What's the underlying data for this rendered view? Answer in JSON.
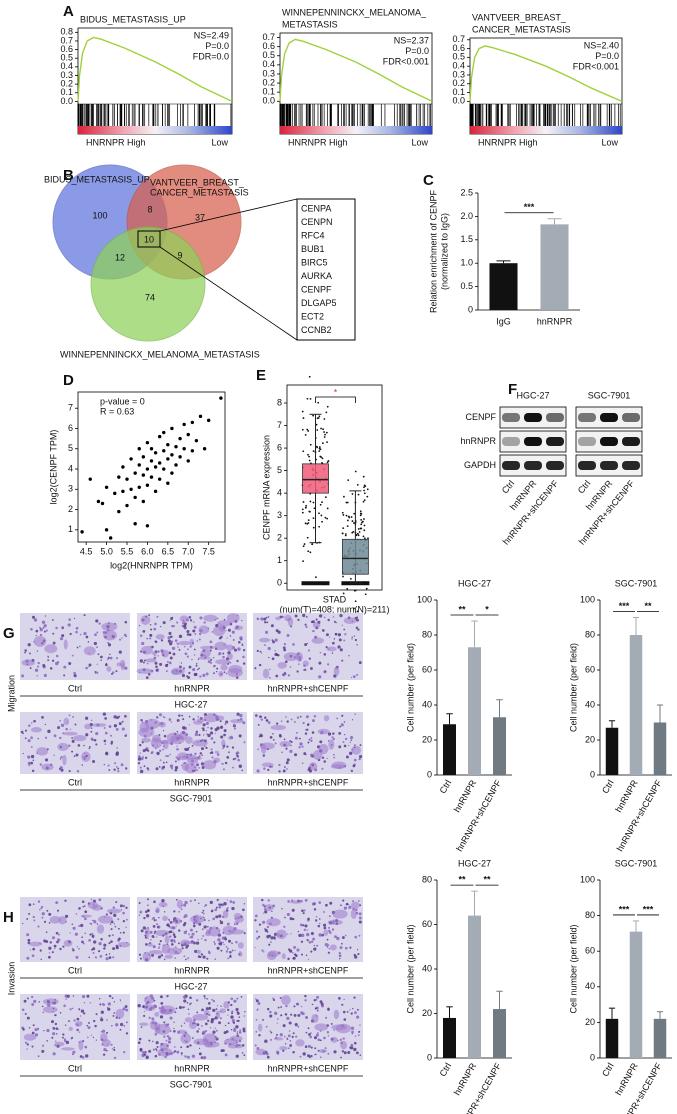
{
  "panel_labels": [
    "A",
    "B",
    "C",
    "D",
    "E",
    "F",
    "G",
    "H"
  ],
  "venn": {
    "sets": [
      [
        "BIDUS_METASTASIS_UP"
      ],
      [
        "VANTVEER_BREAST_",
        "CANCER_METASTASIS"
      ],
      [
        "WINNEPENNINCKX_MELANOMA_METASTASIS"
      ]
    ],
    "counts": [
      "100",
      "8",
      "37",
      "10",
      "12",
      "9",
      "74"
    ]
  },
  "genes": [
    "CENPA",
    "CENPN",
    "RFC4",
    "BUB1",
    "BIRC5",
    "AURKA",
    "CENPF",
    "DLGAP5",
    "ECT2",
    "CCNB2"
  ],
  "blot": {
    "cell_lines": [
      "HGC-27",
      "SGC-7901"
    ],
    "rows": [
      "CENPF",
      "hnRNPR",
      "GAPDH"
    ],
    "lanes": [
      "Ctrl",
      "hnRNPR",
      "hnRNPR+shCENPF"
    ]
  },
  "micrographs": [
    {
      "label": "Migration",
      "columns": [
        "Ctrl",
        "hnRNPR",
        "hnRNPR+shCENPF"
      ],
      "cell_lines": [
        "HGC-27",
        "SGC-7901"
      ]
    },
    {
      "label": "Invasion",
      "columns": [
        "Ctrl",
        "hnRNPR",
        "hnRNPR+shCENPF"
      ],
      "cell_lines": [
        "HGC-27",
        "SGC-7901"
      ]
    }
  ],
  "chart_data": [
    {
      "type": "line",
      "title_lines": [
        "BIDUS_METASTASIS_UP"
      ],
      "color": "#9ed23c",
      "x": [
        0,
        0.01,
        0.03,
        0.06,
        0.1,
        0.15,
        0.3,
        0.5,
        0.65,
        0.8,
        1
      ],
      "values": [
        0,
        0.3,
        0.56,
        0.7,
        0.74,
        0.72,
        0.62,
        0.46,
        0.32,
        0.17,
        0
      ],
      "xlim": [
        0,
        1
      ],
      "ylim": [
        -0.03,
        0.85
      ],
      "yticks": [
        {
          "value": 0,
          "label": "0.0"
        },
        {
          "value": 0.1,
          "label": "0.1"
        },
        {
          "value": 0.2,
          "label": "0.2"
        },
        {
          "value": 0.3,
          "label": "0.3"
        },
        {
          "value": 0.4,
          "label": "0.4"
        },
        {
          "value": 0.5,
          "label": "0.5"
        },
        {
          "value": 0.6,
          "label": "0.6"
        },
        {
          "value": 0.7,
          "label": "0.7"
        },
        {
          "value": 0.8,
          "label": "0.8"
        }
      ],
      "annotations": [
        "NS=2.49",
        "P=0.0",
        "FDR=0.0"
      ],
      "xlabel": "HNRNPR High",
      "xlabel_right": "Low"
    },
    {
      "type": "line",
      "title_lines": [
        "WINNEPENNINCKX_MELANOMA_",
        "METASTASIS"
      ],
      "color": "#9ed23c",
      "x": [
        0,
        0.01,
        0.03,
        0.06,
        0.1,
        0.15,
        0.3,
        0.5,
        0.65,
        0.8,
        1
      ],
      "values": [
        0,
        0.28,
        0.52,
        0.64,
        0.68,
        0.66,
        0.57,
        0.43,
        0.3,
        0.16,
        0
      ],
      "xlim": [
        0,
        1
      ],
      "ylim": [
        -0.03,
        0.75
      ],
      "yticks": [
        {
          "value": 0,
          "label": "0.0"
        },
        {
          "value": 0.1,
          "label": "0.1"
        },
        {
          "value": 0.2,
          "label": "0.2"
        },
        {
          "value": 0.3,
          "label": "0.3"
        },
        {
          "value": 0.4,
          "label": "0.4"
        },
        {
          "value": 0.5,
          "label": "0.5"
        },
        {
          "value": 0.6,
          "label": "0.6"
        },
        {
          "value": 0.7,
          "label": "0.7"
        }
      ],
      "annotations": [
        "NS=2.37",
        "P=0.0",
        "FDR<0.001"
      ],
      "xlabel": "HNRNPR High",
      "xlabel_right": "Low"
    },
    {
      "type": "line",
      "title_lines": [
        "VANTVEER_BREAST_",
        "CANCER_METASTASIS"
      ],
      "color": "#9ed23c",
      "x": [
        0,
        0.01,
        0.03,
        0.06,
        0.1,
        0.15,
        0.3,
        0.5,
        0.65,
        0.8,
        1
      ],
      "values": [
        0,
        0.27,
        0.5,
        0.6,
        0.63,
        0.61,
        0.53,
        0.4,
        0.28,
        0.15,
        0
      ],
      "xlim": [
        0,
        1
      ],
      "ylim": [
        -0.03,
        0.72
      ],
      "yticks": [
        {
          "value": 0,
          "label": "0.0"
        },
        {
          "value": 0.1,
          "label": "0.1"
        },
        {
          "value": 0.2,
          "label": "0.2"
        },
        {
          "value": 0.3,
          "label": "0.3"
        },
        {
          "value": 0.4,
          "label": "0.4"
        },
        {
          "value": 0.5,
          "label": "0.5"
        },
        {
          "value": 0.6,
          "label": "0.6"
        },
        {
          "value": 0.7,
          "label": "0.7"
        }
      ],
      "annotations": [
        "NS=2.40",
        "P=0.0",
        "FDR<0.001"
      ],
      "xlabel": "HNRNPR High",
      "xlabel_right": "Low"
    },
    {
      "type": "bar",
      "categories": [
        "IgG",
        "hnRNPR"
      ],
      "values": [
        1.0,
        1.83
      ],
      "errors": [
        0.05,
        0.12
      ],
      "colors": [
        "#111111",
        "#a3acb4"
      ],
      "ylim": [
        0,
        2.5
      ],
      "yticks": [
        0,
        0.5,
        {
          "value": 1,
          "label": "1.0"
        },
        1.5,
        {
          "value": 2,
          "label": "2.0"
        },
        2.5
      ],
      "ylabel_lines": [
        "Relation enrichment of CENPF",
        "(normalized to IgG)"
      ],
      "significance": [
        {
          "label": "***",
          "between": [
            "IgG",
            "hnRNPR"
          ]
        }
      ]
    },
    {
      "type": "scatter",
      "xlabel": "log2(HNRNPR TPM)",
      "ylabel": "log2(CENPF TPM)",
      "annotations": [
        "p-value = 0",
        "R = 0.63"
      ],
      "xlim": [
        4.3,
        7.9
      ],
      "ylim": [
        0.4,
        7.8
      ],
      "xticks": [
        4.5,
        {
          "value": 5,
          "label": "5.0"
        },
        5.5,
        {
          "value": 6,
          "label": "6.0"
        },
        6.5,
        {
          "value": 7,
          "label": "7.0"
        },
        7.5
      ],
      "yticks": [
        1,
        2,
        3,
        4,
        5,
        6,
        7
      ],
      "x": [
        4.4,
        4.6,
        4.8,
        4.9,
        5.0,
        5.0,
        5.1,
        5.2,
        5.3,
        5.3,
        5.4,
        5.4,
        5.5,
        5.5,
        5.6,
        5.6,
        5.7,
        5.7,
        5.7,
        5.8,
        5.8,
        5.8,
        5.9,
        5.9,
        5.9,
        6.0,
        6.0,
        6.0,
        6.0,
        6.1,
        6.1,
        6.1,
        6.2,
        6.2,
        6.2,
        6.3,
        6.3,
        6.3,
        6.4,
        6.4,
        6.4,
        6.5,
        6.5,
        6.5,
        6.6,
        6.6,
        6.6,
        6.7,
        6.7,
        6.8,
        6.8,
        6.9,
        6.9,
        7.0,
        7.0,
        7.1,
        7.1,
        7.2,
        7.3,
        7.4,
        7.5,
        7.8
      ],
      "values": [
        0.9,
        3.5,
        2.4,
        2.3,
        1.0,
        3.1,
        0.6,
        2.8,
        3.6,
        1.9,
        2.9,
        4.1,
        2.2,
        3.5,
        3.0,
        4.5,
        1.3,
        3.8,
        2.6,
        4.2,
        3.1,
        5.0,
        3.7,
        2.4,
        4.6,
        4.0,
        3.2,
        5.3,
        1.2,
        4.4,
        3.6,
        5.0,
        4.1,
        4.8,
        2.9,
        5.6,
        4.3,
        3.5,
        4.9,
        4.0,
        5.8,
        4.5,
        3.3,
        5.2,
        4.7,
        6.0,
        3.8,
        5.1,
        4.2,
        5.5,
        4.6,
        6.2,
        5.0,
        4.4,
        5.7,
        6.3,
        4.9,
        5.4,
        6.6,
        5.0,
        6.4,
        7.5
      ]
    },
    {
      "type": "box",
      "xlabel": "STAD",
      "subtitle": "(num(T)=408; num(N)=211)",
      "ylabel": "CENPF mRNA expression",
      "significance": "*",
      "ylim": [
        -0.3,
        8.8
      ],
      "yticks": [
        0,
        1,
        2,
        3,
        4,
        5,
        6,
        7,
        8
      ],
      "series": [
        {
          "color": "#ef5a78",
          "whisker_low": 1.8,
          "q1": 4.0,
          "median": 4.6,
          "q3": 5.3,
          "whisker_high": 7.5
        },
        {
          "color": "#6e8a95",
          "whisker_low": 0,
          "q1": 0.4,
          "median": 1.1,
          "q3": 1.95,
          "whisker_high": 4.1
        }
      ]
    },
    {
      "type": "bar",
      "title": "HGC-27",
      "categories": [
        "Ctrl",
        "hnRNPR",
        "hnRNPR+shCENPF"
      ],
      "values": [
        29,
        73,
        33
      ],
      "errors": [
        6,
        15,
        10
      ],
      "colors": [
        "#111111",
        "#a3acb4",
        "#6f7a82"
      ],
      "ylim": [
        0,
        100
      ],
      "yticks": [
        0,
        20,
        40,
        60,
        80,
        100
      ],
      "ylabel_lines": [
        "Cell number (per field)"
      ],
      "significance": [
        {
          "label": "**",
          "between": [
            "Ctrl",
            "hnRNPR"
          ]
        },
        {
          "label": "*",
          "between": [
            "hnRNPR",
            "hnRNPR+shCENPF"
          ]
        }
      ]
    },
    {
      "type": "bar",
      "title": "SGC-7901",
      "categories": [
        "Ctrl",
        "hnRNPR",
        "hnRNPR+shCENPF"
      ],
      "values": [
        27,
        80,
        30
      ],
      "errors": [
        4,
        10,
        10
      ],
      "colors": [
        "#111111",
        "#a3acb4",
        "#6f7a82"
      ],
      "ylim": [
        0,
        100
      ],
      "yticks": [
        0,
        20,
        40,
        60,
        80,
        100
      ],
      "ylabel_lines": [
        "Cell number (per field)"
      ],
      "significance": [
        {
          "label": "***",
          "between": [
            "Ctrl",
            "hnRNPR"
          ]
        },
        {
          "label": "**",
          "between": [
            "hnRNPR",
            "hnRNPR+shCENPF"
          ]
        }
      ]
    },
    {
      "type": "bar",
      "title": "HGC-27",
      "categories": [
        "Ctrl",
        "hnRNPR",
        "hnRNPR+shCENPF"
      ],
      "values": [
        18,
        64,
        22
      ],
      "errors": [
        5,
        11,
        8
      ],
      "colors": [
        "#111111",
        "#a3acb4",
        "#6f7a82"
      ],
      "ylim": [
        0,
        80
      ],
      "yticks": [
        0,
        20,
        40,
        60,
        80
      ],
      "ylabel_lines": [
        "Cell number (per field)"
      ],
      "significance": [
        {
          "label": "**",
          "between": [
            "Ctrl",
            "hnRNPR"
          ]
        },
        {
          "label": "**",
          "between": [
            "hnRNPR",
            "hnRNPR+shCENPF"
          ]
        }
      ]
    },
    {
      "type": "bar",
      "title": "SGC-7901",
      "categories": [
        "Ctrl",
        "hnRNPR",
        "hnRNPR+shCENPF"
      ],
      "values": [
        22,
        71,
        22
      ],
      "errors": [
        6,
        6,
        4
      ],
      "colors": [
        "#111111",
        "#a3acb4",
        "#6f7a82"
      ],
      "ylim": [
        0,
        100
      ],
      "yticks": [
        0,
        20,
        40,
        60,
        80,
        100
      ],
      "ylabel_lines": [
        "Cell number (per field)"
      ],
      "significance": [
        {
          "label": "***",
          "between": [
            "Ctrl",
            "hnRNPR"
          ]
        },
        {
          "label": "***",
          "between": [
            "hnRNPR",
            "hnRNPR+shCENPF"
          ]
        }
      ]
    }
  ]
}
